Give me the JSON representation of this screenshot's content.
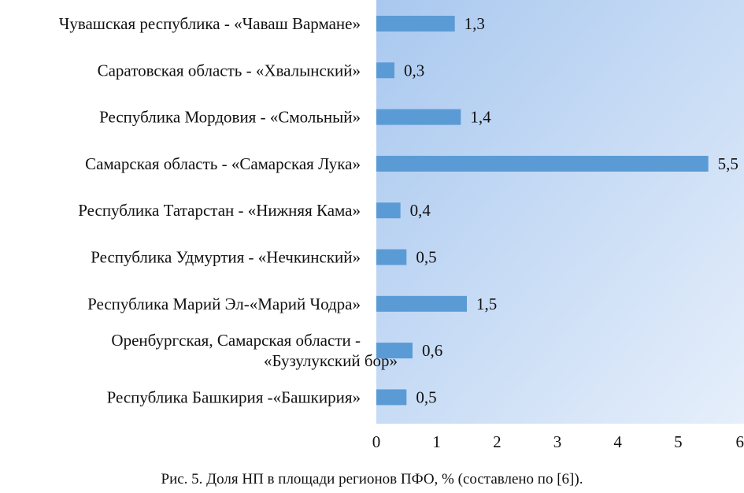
{
  "chart_data": {
    "type": "bar",
    "orientation": "horizontal",
    "categories": [
      "Чувашская республика - «Чаваш Вармане»",
      "Саратовская область - «Хвалынский»",
      "Республика Мордовия - «Смольный»",
      "Самарская область - «Самарская Лука»",
      "Республика Татарстан - «Нижняя Кама»",
      "Республика Удмуртия - «Нечкинский»",
      "Республика Марий Эл-«Марий Чодра»",
      "Оренбургская, Самарская области - «Бузулукский бор»",
      "Республика Башкирия -«Башкирия»"
    ],
    "category_lines": [
      [
        "Чувашская республика - «Чаваш Вармане»"
      ],
      [
        "Саратовская область - «Хвалынский»"
      ],
      [
        "Республика Мордовия - «Смольный»"
      ],
      [
        "Самарская область - «Самарская Лука»"
      ],
      [
        "Республика Татарстан - «Нижняя Кама»"
      ],
      [
        "Республика Удмуртия - «Нечкинский»"
      ],
      [
        "Республика Марий Эл-«Марий Чодра»"
      ],
      [
        "Оренбургская, Самарская области -",
        "«Бузулукский бор»"
      ],
      [
        "Республика Башкирия -«Башкирия»"
      ]
    ],
    "values": [
      1.3,
      0.3,
      1.4,
      5.5,
      0.4,
      0.5,
      1.5,
      0.6,
      0.5
    ],
    "value_labels": [
      "1,3",
      "0,3",
      "1,4",
      "5,5",
      "0,4",
      "0,5",
      "1,5",
      "0,6",
      "0,5"
    ],
    "xlim": [
      0,
      6
    ],
    "xticks": [
      0,
      1,
      2,
      3,
      4,
      5,
      6
    ],
    "xtick_labels": [
      "0",
      "1",
      "2",
      "3",
      "4",
      "5",
      "6"
    ],
    "grid": false,
    "legend": "none",
    "bar_color": "#5b9bd5",
    "plot_background": "gradient-blue"
  },
  "caption": "Рис. 5. Доля НП в площади регионов ПФО, % (составлено по [6]).",
  "colors": {
    "bar": "#5b9bd5",
    "plot_bg_start": "#a9c8ef",
    "plot_bg_end": "#e6effb"
  }
}
